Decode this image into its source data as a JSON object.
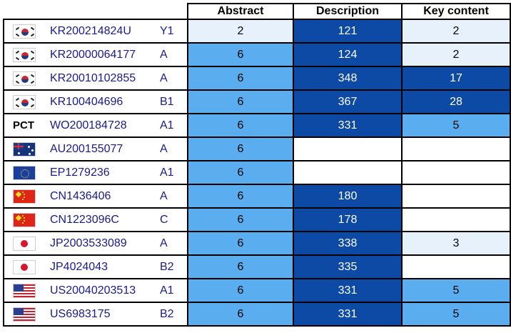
{
  "columns": {
    "abstract": "Abstract",
    "description": "Description",
    "key_content": "Key content"
  },
  "colors": {
    "empty": "#ffffff",
    "light": "#e6f1fc",
    "mid": "#5aaef0",
    "dark": "#0c4aa6"
  },
  "rows": [
    {
      "flag": "kr-flag-icon",
      "prefix": "",
      "number": "KR200214824U",
      "kind": "Y1",
      "abstract": "2",
      "description": "121",
      "key_content": "2"
    },
    {
      "flag": "kr-flag-icon",
      "prefix": "",
      "number": "KR20000064177",
      "kind": "A",
      "abstract": "6",
      "description": "124",
      "key_content": "2"
    },
    {
      "flag": "kr-flag-icon",
      "prefix": "",
      "number": "KR20010102855",
      "kind": "A",
      "abstract": "6",
      "description": "348",
      "key_content": "17"
    },
    {
      "flag": "kr-flag-icon",
      "prefix": "",
      "number": "KR100404696",
      "kind": "B1",
      "abstract": "6",
      "description": "367",
      "key_content": "28"
    },
    {
      "flag": "pct-label",
      "prefix": "PCT",
      "number": "WO200184728",
      "kind": "A1",
      "abstract": "6",
      "description": "331",
      "key_content": "5"
    },
    {
      "flag": "au-flag-icon",
      "prefix": "",
      "number": "AU200155077",
      "kind": "A",
      "abstract": "6",
      "description": "",
      "key_content": ""
    },
    {
      "flag": "eu-flag-icon",
      "prefix": "",
      "number": "EP1279236",
      "kind": "A1",
      "abstract": "6",
      "description": "",
      "key_content": ""
    },
    {
      "flag": "cn-flag-icon",
      "prefix": "",
      "number": "CN1436406",
      "kind": "A",
      "abstract": "6",
      "description": "180",
      "key_content": ""
    },
    {
      "flag": "cn-flag-icon",
      "prefix": "",
      "number": "CN1223096C",
      "kind": "C",
      "abstract": "6",
      "description": "178",
      "key_content": ""
    },
    {
      "flag": "jp-flag-icon",
      "prefix": "",
      "number": "JP2003533089",
      "kind": "A",
      "abstract": "6",
      "description": "338",
      "key_content": "3"
    },
    {
      "flag": "jp-flag-icon",
      "prefix": "",
      "number": "JP4024043",
      "kind": "B2",
      "abstract": "6",
      "description": "335",
      "key_content": ""
    },
    {
      "flag": "us-flag-icon",
      "prefix": "",
      "number": "US20040203513",
      "kind": "A1",
      "abstract": "6",
      "description": "331",
      "key_content": "5"
    },
    {
      "flag": "us-flag-icon",
      "prefix": "",
      "number": "US6983175",
      "kind": "B2",
      "abstract": "6",
      "description": "331",
      "key_content": "5"
    }
  ]
}
